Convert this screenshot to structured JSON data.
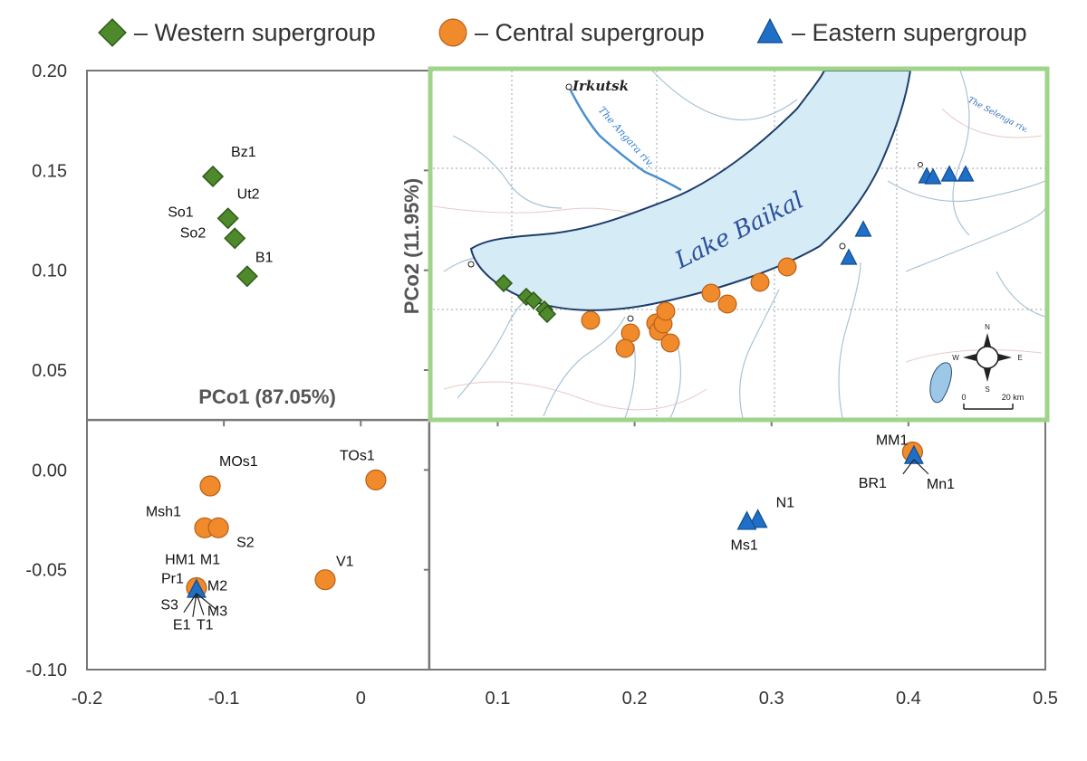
{
  "legend": [
    {
      "key": "western",
      "label": "– Western supergroup",
      "marker": "diamond",
      "color": "#4e8a2c"
    },
    {
      "key": "central",
      "label": "– Central supergroup",
      "marker": "circle",
      "color": "#f08a2a"
    },
    {
      "key": "eastern",
      "label": "– Eastern supergroup",
      "marker": "triangle",
      "color": "#1f6fc7"
    }
  ],
  "colors": {
    "western": "#4e8a2c",
    "western_stroke": "#2f5a18",
    "central": "#f08a2a",
    "central_stroke": "#b8601a",
    "eastern": "#1f6fc7",
    "eastern_stroke": "#114c92",
    "axis": "#777777",
    "map_border": "#9fd48a",
    "lake": "#d5ebf5",
    "river": "#9cbfd8"
  },
  "chart_data": {
    "type": "scatter",
    "xlabel": "PCo1 (87.05%)",
    "ylabel": "PCo2 (11.95%)",
    "xlim": [
      -0.2,
      0.5
    ],
    "ylim": [
      -0.1,
      0.2
    ],
    "xticks": [
      "-0.2",
      "-0.1",
      "0",
      "0.1",
      "0.2",
      "0.3",
      "0.4",
      "0.5"
    ],
    "yticks": [
      "0.20",
      "0.15",
      "0.10",
      "0.05",
      "0.00",
      "-0.05",
      "-0.10"
    ],
    "axis_cross": {
      "x": 0.05,
      "y": 0.025
    },
    "series": [
      {
        "name": "Western supergroup",
        "marker": "diamond",
        "points": [
          {
            "label": "Bz1",
            "x": -0.108,
            "y": 0.147
          },
          {
            "label": "So1",
            "x": -0.097,
            "y": 0.126
          },
          {
            "label": "Ut2",
            "x": -0.097,
            "y": 0.126
          },
          {
            "label": "So2",
            "x": -0.092,
            "y": 0.116
          },
          {
            "label": "B1",
            "x": -0.083,
            "y": 0.097
          }
        ]
      },
      {
        "name": "Central supergroup",
        "marker": "circle",
        "points": [
          {
            "label": "MOs1",
            "x": -0.11,
            "y": -0.008
          },
          {
            "label": "TOs1",
            "x": 0.011,
            "y": -0.005
          },
          {
            "label": "Msh1",
            "x": -0.114,
            "y": -0.029
          },
          {
            "label": "S2",
            "x": -0.104,
            "y": -0.029
          },
          {
            "label": "HM1",
            "x": -0.12,
            "y": -0.059
          },
          {
            "label": "M1",
            "x": -0.12,
            "y": -0.059
          },
          {
            "label": "Pr1",
            "x": -0.12,
            "y": -0.059
          },
          {
            "label": "M2",
            "x": -0.12,
            "y": -0.059
          },
          {
            "label": "V1",
            "x": -0.026,
            "y": -0.055
          },
          {
            "label": "MM1",
            "x": 0.403,
            "y": 0.009
          }
        ]
      },
      {
        "name": "Eastern supergroup",
        "marker": "triangle",
        "points": [
          {
            "label": "S3",
            "x": -0.12,
            "y": -0.06
          },
          {
            "label": "M3",
            "x": -0.12,
            "y": -0.06
          },
          {
            "label": "E1",
            "x": -0.12,
            "y": -0.06
          },
          {
            "label": "T1",
            "x": -0.12,
            "y": -0.06
          },
          {
            "label": "BR1",
            "x": 0.404,
            "y": 0.007
          },
          {
            "label": "Mn1",
            "x": 0.404,
            "y": 0.007
          },
          {
            "label": "N1",
            "x": 0.29,
            "y": -0.025
          },
          {
            "label": "Ms1",
            "x": 0.282,
            "y": -0.026
          }
        ]
      }
    ]
  },
  "map": {
    "labels": {
      "city": "Irkutsk",
      "angara": "The Angara riv.",
      "selenga": "The Selenga riv.",
      "lake": "Lake Baikal",
      "scale": "20 km",
      "scale_zero": "0",
      "compass": [
        "N",
        "S",
        "W",
        "E"
      ]
    }
  }
}
